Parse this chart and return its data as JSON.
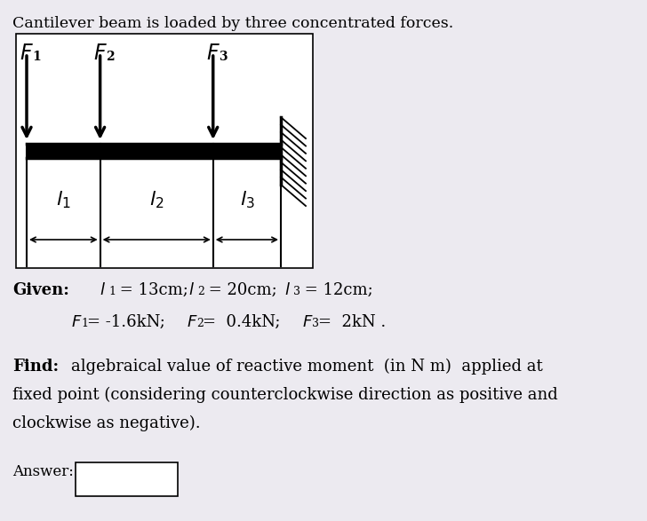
{
  "title": "Cantilever beam is loaded by three concentrated forces.",
  "background_color": "#eceaf0",
  "given_bold": "Given:",
  "find_bold": "Find:",
  "answer_label": "Answer:",
  "l1_cm": 13,
  "l2_cm": 20,
  "l3_cm": 12,
  "fig_width": 7.28,
  "fig_height": 5.87,
  "dpi": 100
}
